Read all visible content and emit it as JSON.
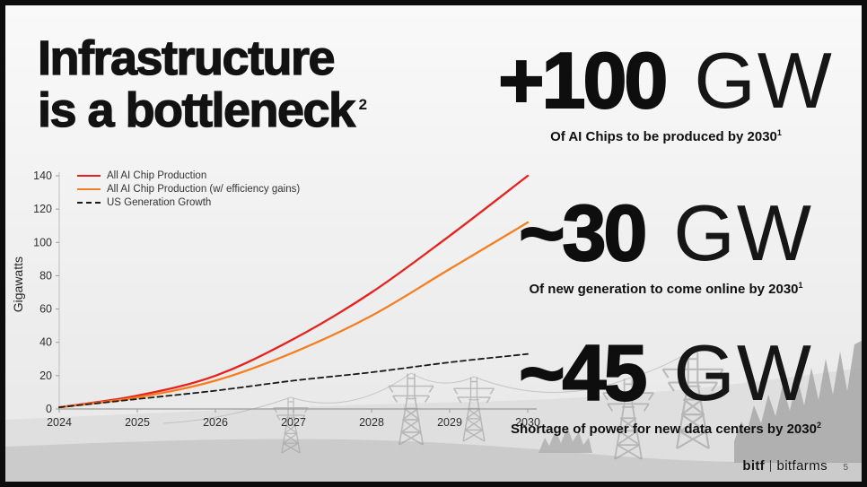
{
  "slide": {
    "title_line1": "Infrastructure",
    "title_line2": "is a bottleneck",
    "title_superscript": "2",
    "page_number": "5"
  },
  "stats": [
    {
      "number": "+100",
      "unit": "GW",
      "caption": "Of AI Chips to be produced by 2030",
      "footnote": "1"
    },
    {
      "number": "~30",
      "unit": "GW",
      "caption": "Of new generation to come online by 2030",
      "footnote": "1"
    },
    {
      "number": "~45",
      "unit": "GW",
      "caption": "Shortage of power for new data centers by 2030",
      "footnote": "2"
    }
  ],
  "footer": {
    "logo_ticker": "bitf",
    "logo_name": "bitfarms"
  },
  "chart_data": {
    "type": "line",
    "x": [
      2024,
      2025,
      2026,
      2027,
      2028,
      2029,
      2030
    ],
    "series": [
      {
        "name": "All AI Chip Production",
        "color": "#e8211d",
        "style": "solid",
        "values": [
          1,
          8,
          20,
          42,
          70,
          104,
          140
        ]
      },
      {
        "name": "All AI Chip Production (w/ efficiency gains)",
        "color": "#f57e20",
        "style": "solid",
        "values": [
          1,
          7,
          17,
          34,
          56,
          84,
          112
        ]
      },
      {
        "name": "US Generation Growth",
        "color": "#1a1a1a",
        "style": "dashed",
        "values": [
          1,
          6,
          11,
          17,
          22,
          28,
          33
        ]
      }
    ],
    "title": "",
    "xlabel": "",
    "ylabel": "Gigawatts",
    "ylim": [
      0,
      140
    ],
    "yticks": [
      0,
      20,
      40,
      60,
      80,
      100,
      120,
      140
    ],
    "legend_position": "top-left",
    "grid": false
  }
}
